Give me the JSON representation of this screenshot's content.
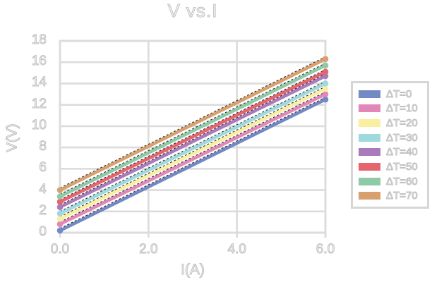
{
  "title": "V vs.I",
  "chart_data": {
    "type": "line",
    "title": "V vs.I",
    "xlabel": "I(A)",
    "ylabel": "V(V)",
    "xlim": [
      0,
      6
    ],
    "ylim": [
      0,
      18
    ],
    "xticks": [
      "0.0",
      "2.0",
      "4.0",
      "6.0"
    ],
    "xtick_values": [
      0,
      2,
      4,
      6
    ],
    "yticks": [
      0,
      2,
      4,
      6,
      8,
      10,
      12,
      14,
      16,
      18
    ],
    "grid": true,
    "legend_position": "right",
    "x": [
      0,
      6
    ],
    "series": [
      {
        "name": "ΔT=0",
        "color": "#7289c4",
        "values": [
          0.2,
          12.5
        ]
      },
      {
        "name": "ΔT=10",
        "color": "#e287b7",
        "values": [
          0.8,
          13.0
        ]
      },
      {
        "name": "ΔT=20",
        "color": "#f8f0a0",
        "values": [
          1.3,
          13.5
        ]
      },
      {
        "name": "ΔT=30",
        "color": "#9fd9de",
        "values": [
          1.8,
          14.0
        ]
      },
      {
        "name": "ΔT=40",
        "color": "#a87cba",
        "values": [
          2.4,
          14.7
        ]
      },
      {
        "name": "ΔT=50",
        "color": "#e5646d",
        "values": [
          2.9,
          15.1
        ]
      },
      {
        "name": "ΔT=60",
        "color": "#8ecaa7",
        "values": [
          3.4,
          15.7
        ]
      },
      {
        "name": "ΔT=70",
        "color": "#d8a06e",
        "values": [
          4.0,
          16.3
        ]
      }
    ],
    "trendlines": {
      "present": true,
      "style": "dotted",
      "color": "#2a2a2a"
    }
  },
  "colors": {
    "background": "#ffffff",
    "grid": "#dcdcdc",
    "text_fill": "#fafafa",
    "text_outline": "#c2c2c2",
    "legend_border": "#d6d6d6"
  }
}
